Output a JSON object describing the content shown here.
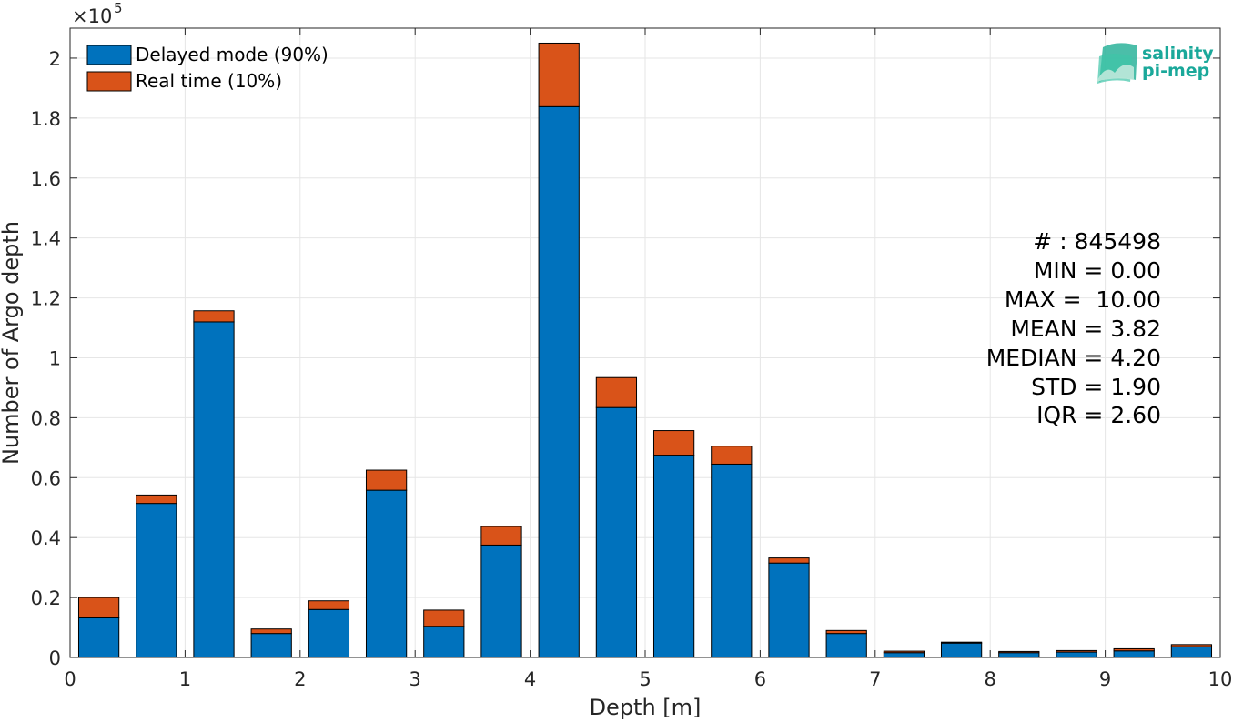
{
  "chart_data": {
    "type": "bar",
    "stacked": true,
    "xlabel": "Depth [m]",
    "ylabel": "Number of Argo depth",
    "y_multiplier": "×10",
    "y_exponent": "5",
    "xlim": [
      0,
      10
    ],
    "ylim": [
      0,
      2.1
    ],
    "x_ticks": [
      0,
      1,
      2,
      3,
      4,
      5,
      6,
      7,
      8,
      9,
      10
    ],
    "y_ticks": [
      0,
      0.2,
      0.4,
      0.6,
      0.8,
      1,
      1.2,
      1.4,
      1.6,
      1.8,
      2
    ],
    "grid": true,
    "legend_position": "top-left",
    "bin_centers": [
      0.25,
      0.75,
      1.25,
      1.75,
      2.25,
      2.75,
      3.25,
      3.75,
      4.25,
      4.75,
      5.25,
      5.75,
      6.25,
      6.75,
      7.25,
      7.75,
      8.25,
      8.75,
      9.25,
      9.75
    ],
    "bar_width": 0.35,
    "series": [
      {
        "name": "Delayed mode (90%)",
        "color": "#0072BD",
        "values": [
          0.132,
          0.514,
          1.12,
          0.08,
          0.16,
          0.558,
          0.104,
          0.375,
          1.838,
          0.834,
          0.675,
          0.645,
          0.315,
          0.08,
          0.016,
          0.048,
          0.016,
          0.018,
          0.022,
          0.036
        ]
      },
      {
        "name": "Real time (10%)",
        "color": "#D95319",
        "values": [
          0.068,
          0.028,
          0.037,
          0.015,
          0.029,
          0.067,
          0.054,
          0.062,
          0.212,
          0.1,
          0.082,
          0.06,
          0.017,
          0.01,
          0.005,
          0.003,
          0.004,
          0.005,
          0.007,
          0.007
        ]
      }
    ],
    "stats": [
      "# : 845498",
      "MIN = 0.00",
      "MAX =  10.00",
      "MEAN = 3.82",
      "MEDIAN = 4.20",
      "STD = 1.90",
      "IQR = 2.60"
    ]
  },
  "logo": {
    "line1": "salinity",
    "line2": "pi-mep",
    "color": "#1aa89a"
  }
}
